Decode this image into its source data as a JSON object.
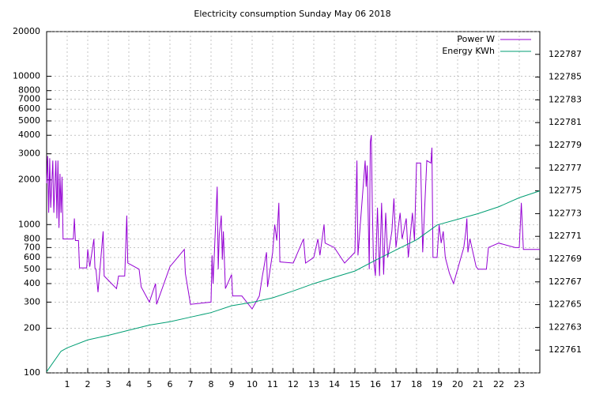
{
  "chart_data": {
    "type": "line",
    "title": "Electricity consumption Sunday May 06 2018",
    "xlim": [
      0,
      24
    ],
    "xticks": [
      1,
      2,
      3,
      4,
      5,
      6,
      7,
      8,
      9,
      10,
      11,
      12,
      13,
      14,
      15,
      16,
      17,
      18,
      19,
      20,
      21,
      22,
      23
    ],
    "ylim": [
      100,
      20000
    ],
    "yscale": "log",
    "yticks": [
      100,
      200,
      300,
      400,
      500,
      600,
      700,
      800,
      1000,
      2000,
      3000,
      4000,
      5000,
      6000,
      7000,
      8000,
      10000,
      20000
    ],
    "y2lim": [
      122759,
      122789
    ],
    "y2ticks": [
      122761,
      122763,
      122765,
      122767,
      122769,
      122771,
      122773,
      122775,
      122777,
      122779,
      122781,
      122783,
      122785,
      122787
    ],
    "grid": true,
    "legend": "top-right",
    "series": [
      {
        "name": "Power W",
        "color": "#9400d3",
        "x": [
          0,
          0.05,
          0.1,
          0.15,
          0.2,
          0.3,
          0.35,
          0.45,
          0.5,
          0.55,
          0.6,
          0.65,
          0.7,
          0.75,
          0.8,
          1.3,
          1.35,
          1.4,
          1.55,
          1.6,
          1.95,
          2.0,
          2.1,
          2.3,
          2.35,
          2.4,
          2.5,
          2.75,
          2.8,
          3.4,
          3.5,
          3.8,
          3.9,
          3.95,
          4.5,
          4.6,
          5.0,
          5.3,
          5.35,
          6.0,
          6.7,
          6.75,
          7.0,
          8.0,
          8.05,
          8.1,
          8.2,
          8.3,
          8.35,
          8.4,
          8.5,
          8.55,
          8.6,
          8.7,
          9.0,
          9.05,
          9.5,
          10.0,
          10.35,
          10.5,
          10.7,
          10.75,
          11.0,
          11.1,
          11.2,
          11.3,
          11.35,
          12.0,
          12.5,
          12.6,
          13.0,
          13.2,
          13.3,
          13.5,
          13.55,
          14.0,
          14.5,
          15.0,
          15.1,
          15.15,
          15.5,
          15.55,
          15.6,
          15.7,
          15.75,
          15.8,
          15.85,
          15.9,
          16.0,
          16.1,
          16.2,
          16.3,
          16.4,
          16.5,
          16.6,
          16.8,
          16.9,
          17.0,
          17.2,
          17.3,
          17.5,
          17.6,
          17.8,
          17.9,
          18.0,
          18.2,
          18.3,
          18.5,
          18.7,
          18.75,
          18.8,
          19.0,
          19.1,
          19.2,
          19.3,
          19.4,
          19.6,
          19.8,
          20.0,
          20.3,
          20.4,
          20.45,
          20.5,
          20.6,
          20.9,
          21.0,
          21.4,
          21.5,
          22.0,
          22.8,
          23.0,
          23.1,
          23.2,
          24
        ],
        "values": [
          1900,
          2900,
          1200,
          2800,
          1300,
          2700,
          1200,
          2700,
          1100,
          2700,
          950,
          2200,
          1200,
          2100,
          800,
          800,
          1100,
          780,
          780,
          510,
          510,
          680,
          520,
          800,
          510,
          500,
          350,
          900,
          450,
          370,
          450,
          450,
          1150,
          550,
          500,
          380,
          300,
          400,
          290,
          520,
          680,
          470,
          290,
          300,
          620,
          400,
          850,
          1800,
          500,
          850,
          1150,
          580,
          900,
          370,
          460,
          330,
          330,
          270,
          330,
          450,
          650,
          380,
          650,
          1000,
          780,
          1400,
          560,
          550,
          800,
          550,
          600,
          800,
          620,
          1000,
          750,
          700,
          550,
          650,
          2700,
          620,
          2700,
          1800,
          2500,
          500,
          3600,
          4000,
          1300,
          600,
          450,
          1300,
          450,
          1400,
          460,
          1200,
          600,
          900,
          1500,
          700,
          1200,
          800,
          1100,
          600,
          1200,
          780,
          2600,
          2600,
          650,
          2700,
          2600,
          3300,
          600,
          600,
          1000,
          750,
          900,
          600,
          470,
          400,
          500,
          700,
          900,
          1100,
          650,
          800,
          520,
          500,
          500,
          700,
          750,
          700,
          700,
          1400,
          680,
          680
        ]
      },
      {
        "name": "Energy KWh",
        "color": "#009e73",
        "axis": "y2",
        "x": [
          0,
          0.7,
          1,
          2,
          3,
          4,
          5,
          6,
          7,
          8,
          9,
          10,
          11,
          12,
          13,
          14,
          15,
          16,
          17,
          18,
          18.7,
          19,
          20,
          21,
          22,
          23,
          24
        ],
        "values": [
          122759.1,
          122760.9,
          122761.2,
          122761.9,
          122762.3,
          122762.75,
          122763.2,
          122763.5,
          122763.9,
          122764.3,
          122764.9,
          122765.2,
          122765.6,
          122766.2,
          122766.85,
          122767.4,
          122767.95,
          122768.9,
          122769.8,
          122770.7,
          122771.6,
          122772.0,
          122772.5,
          122773.0,
          122773.6,
          122774.4,
          122775.0
        ]
      }
    ]
  }
}
